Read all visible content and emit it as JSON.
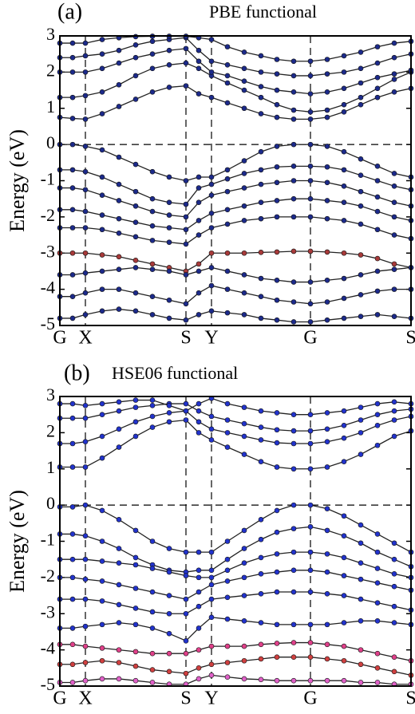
{
  "chart_data": [
    {
      "type": "line",
      "panel_label": "(a)",
      "title": "PBE functional",
      "ylabel": "Energy (eV)",
      "x": [
        0,
        0.16,
        0.32,
        0.53,
        0.74,
        0.95,
        1.16,
        1.37,
        1.58,
        1.74,
        1.9,
        2.1,
        2.31,
        2.52,
        2.72,
        2.93,
        3.14,
        3.35,
        3.56,
        3.77,
        3.98,
        4.19,
        4.4
      ],
      "xlim": [
        0,
        4.4
      ],
      "ylim": [
        -5,
        3
      ],
      "xticks": [
        {
          "value": 0,
          "label": "G"
        },
        {
          "value": 0.32,
          "label": "X"
        },
        {
          "value": 1.58,
          "label": "S"
        },
        {
          "value": 1.9,
          "label": "Y"
        },
        {
          "value": 3.14,
          "label": "G"
        },
        {
          "value": 4.4,
          "label": "S"
        }
      ],
      "yticks": [
        -5,
        -4,
        -3,
        -2,
        -1,
        0,
        1,
        2,
        3
      ],
      "hline": 0,
      "series": [
        {
          "color": "#1c2a8a",
          "values": [
            0.75,
            0.72,
            0.7,
            0.85,
            1.05,
            1.25,
            1.45,
            1.58,
            1.62,
            1.4,
            1.3,
            1.15,
            1.0,
            0.85,
            0.75,
            0.7,
            0.7,
            0.75,
            0.9,
            1.1,
            1.3,
            1.45,
            1.55
          ]
        },
        {
          "color": "#1c2a8a",
          "values": [
            1.3,
            1.3,
            1.35,
            1.45,
            1.65,
            1.9,
            2.1,
            2.2,
            2.25,
            2.1,
            1.9,
            1.7,
            1.5,
            1.3,
            1.1,
            0.95,
            0.9,
            0.95,
            1.1,
            1.3,
            1.55,
            1.8,
            2.0
          ]
        },
        {
          "color": "#1c2a8a",
          "values": [
            2.0,
            2.0,
            2.0,
            2.1,
            2.25,
            2.4,
            2.5,
            2.6,
            2.65,
            2.3,
            2.0,
            1.9,
            1.75,
            1.6,
            1.5,
            1.45,
            1.4,
            1.45,
            1.55,
            1.7,
            1.85,
            1.95,
            2.05
          ]
        },
        {
          "color": "#1c2a8a",
          "values": [
            2.4,
            2.4,
            2.45,
            2.5,
            2.6,
            2.75,
            2.85,
            2.9,
            2.95,
            2.6,
            2.3,
            2.2,
            2.1,
            2.0,
            1.95,
            1.9,
            1.9,
            1.95,
            2.0,
            2.1,
            2.25,
            2.4,
            2.5
          ]
        },
        {
          "color": "#1c2a8a",
          "values": [
            2.8,
            2.8,
            2.8,
            2.9,
            2.95,
            2.98,
            2.99,
            2.99,
            2.99,
            2.95,
            2.9,
            2.7,
            2.55,
            2.45,
            2.35,
            2.3,
            2.3,
            2.35,
            2.45,
            2.55,
            2.7,
            2.8,
            2.85
          ]
        },
        {
          "color": "#1c2a8a",
          "values": [
            0,
            0,
            -0.05,
            -0.15,
            -0.35,
            -0.55,
            -0.75,
            -0.9,
            -1.0,
            -0.9,
            -0.9,
            -0.7,
            -0.45,
            -0.2,
            -0.05,
            0,
            0,
            -0.05,
            -0.2,
            -0.4,
            -0.6,
            -0.8,
            -0.9
          ]
        },
        {
          "color": "#1c2a8a",
          "values": [
            -0.7,
            -0.7,
            -0.75,
            -0.9,
            -1.1,
            -1.3,
            -1.5,
            -1.6,
            -1.65,
            -1.2,
            -1.1,
            -0.95,
            -0.8,
            -0.7,
            -0.62,
            -0.6,
            -0.6,
            -0.62,
            -0.7,
            -0.85,
            -1.0,
            -1.15,
            -1.25
          ]
        },
        {
          "color": "#1c2a8a",
          "values": [
            -1.2,
            -1.2,
            -1.25,
            -1.4,
            -1.55,
            -1.7,
            -1.85,
            -1.95,
            -2.0,
            -1.6,
            -1.4,
            -1.3,
            -1.2,
            -1.1,
            -1.05,
            -1.0,
            -1.0,
            -1.05,
            -1.15,
            -1.3,
            -1.45,
            -1.6,
            -1.7
          ]
        },
        {
          "color": "#1c2a8a",
          "values": [
            -1.8,
            -1.8,
            -1.85,
            -1.95,
            -2.05,
            -2.15,
            -2.25,
            -2.3,
            -2.35,
            -2.1,
            -1.9,
            -1.8,
            -1.7,
            -1.6,
            -1.55,
            -1.5,
            -1.5,
            -1.55,
            -1.6,
            -1.7,
            -1.85,
            -2.0,
            -2.1
          ]
        },
        {
          "color": "#1c2a8a",
          "values": [
            -2.3,
            -2.3,
            -2.3,
            -2.35,
            -2.45,
            -2.55,
            -2.65,
            -2.7,
            -2.75,
            -2.5,
            -2.3,
            -2.2,
            -2.1,
            -2.05,
            -2.0,
            -2.0,
            -2.0,
            -2.05,
            -2.1,
            -2.2,
            -2.35,
            -2.5,
            -2.6
          ]
        },
        {
          "color": "#a83a3a",
          "values": [
            -3.0,
            -3.0,
            -3.0,
            -3.05,
            -3.1,
            -3.2,
            -3.3,
            -3.4,
            -3.5,
            -3.3,
            -3.0,
            -3.0,
            -3.0,
            -2.98,
            -2.97,
            -2.95,
            -2.95,
            -2.97,
            -3.0,
            -3.05,
            -3.15,
            -3.3,
            -3.4
          ]
        },
        {
          "color": "#1c2a8a",
          "values": [
            -3.6,
            -3.6,
            -3.55,
            -3.5,
            -3.45,
            -3.4,
            -3.45,
            -3.5,
            -3.6,
            -3.5,
            -3.4,
            -3.5,
            -3.6,
            -3.7,
            -3.75,
            -3.8,
            -3.8,
            -3.75,
            -3.7,
            -3.6,
            -3.5,
            -3.45,
            -3.4
          ]
        },
        {
          "color": "#1c2a8a",
          "values": [
            -4.2,
            -4.2,
            -4.1,
            -4.0,
            -4.0,
            -4.1,
            -4.2,
            -4.3,
            -4.4,
            -4.1,
            -3.9,
            -4.0,
            -4.1,
            -4.2,
            -4.3,
            -4.35,
            -4.4,
            -4.35,
            -4.25,
            -4.15,
            -4.05,
            -4.0,
            -4.0
          ]
        },
        {
          "color": "#1c2a8a",
          "values": [
            -4.8,
            -4.8,
            -4.7,
            -4.6,
            -4.55,
            -4.6,
            -4.7,
            -4.8,
            -4.85,
            -4.7,
            -4.6,
            -4.65,
            -4.7,
            -4.8,
            -4.85,
            -4.9,
            -4.9,
            -4.85,
            -4.8,
            -4.75,
            -4.7,
            -4.75,
            -4.8
          ]
        }
      ]
    },
    {
      "type": "line",
      "panel_label": "(b)",
      "title": "HSE06 functional",
      "ylabel": "Energy (eV)",
      "x": [
        0,
        0.16,
        0.32,
        0.53,
        0.74,
        0.95,
        1.16,
        1.37,
        1.58,
        1.74,
        1.9,
        2.1,
        2.31,
        2.52,
        2.72,
        2.93,
        3.14,
        3.35,
        3.56,
        3.77,
        3.98,
        4.19,
        4.4
      ],
      "xlim": [
        0,
        4.4
      ],
      "ylim": [
        -5,
        3
      ],
      "xticks": [
        {
          "value": 0,
          "label": "G"
        },
        {
          "value": 0.32,
          "label": "X"
        },
        {
          "value": 1.58,
          "label": "S"
        },
        {
          "value": 1.9,
          "label": "Y"
        },
        {
          "value": 3.14,
          "label": "G"
        },
        {
          "value": 4.4,
          "label": "S"
        }
      ],
      "yticks": [
        -5,
        -4,
        -3,
        -2,
        -1,
        0,
        1,
        2,
        3
      ],
      "hline": 0,
      "series": [
        {
          "color": "#2233cc",
          "values": [
            1.05,
            1.05,
            1.05,
            1.3,
            1.6,
            1.9,
            2.15,
            2.3,
            2.35,
            2.0,
            1.8,
            1.6,
            1.4,
            1.2,
            1.05,
            1.0,
            1.0,
            1.05,
            1.2,
            1.4,
            1.65,
            1.9,
            2.05
          ]
        },
        {
          "color": "#2233cc",
          "values": [
            1.7,
            1.7,
            1.75,
            1.9,
            2.1,
            2.3,
            2.45,
            2.55,
            2.6,
            2.3,
            2.1,
            2.0,
            1.9,
            1.8,
            1.72,
            1.7,
            1.7,
            1.75,
            1.85,
            2.0,
            2.2,
            2.35,
            2.45
          ]
        },
        {
          "color": "#2233cc",
          "values": [
            2.4,
            2.4,
            2.4,
            2.5,
            2.6,
            2.7,
            2.75,
            2.8,
            2.8,
            2.6,
            2.45,
            2.35,
            2.25,
            2.15,
            2.08,
            2.05,
            2.05,
            2.1,
            2.2,
            2.35,
            2.5,
            2.6,
            2.65
          ]
        },
        {
          "color": "#2233cc",
          "values": [
            2.8,
            2.8,
            2.75,
            2.8,
            2.85,
            2.9,
            2.9,
            2.75,
            2.6,
            2.8,
            2.95,
            2.8,
            2.7,
            2.6,
            2.55,
            2.5,
            2.5,
            2.55,
            2.6,
            2.7,
            2.8,
            2.85,
            2.8
          ]
        },
        {
          "color": "#2233cc",
          "values": [
            -0.05,
            -0.05,
            0,
            -0.15,
            -0.4,
            -0.7,
            -1.0,
            -1.2,
            -1.3,
            -1.3,
            -1.3,
            -1.0,
            -0.7,
            -0.4,
            -0.15,
            0,
            0,
            -0.1,
            -0.3,
            -0.55,
            -0.8,
            -1.05,
            -1.3
          ]
        },
        {
          "color": "#2233cc",
          "values": [
            -0.8,
            -0.8,
            -0.85,
            -1.0,
            -1.2,
            -1.45,
            -1.65,
            -1.8,
            -1.85,
            -1.8,
            -1.8,
            -1.5,
            -1.2,
            -0.95,
            -0.75,
            -0.65,
            -0.6,
            -0.7,
            -0.85,
            -1.05,
            -1.3,
            -1.5,
            -1.7
          ]
        },
        {
          "color": "#2233cc",
          "values": [
            -1.5,
            -1.5,
            -1.5,
            -1.55,
            -1.6,
            -1.65,
            -1.75,
            -1.85,
            -1.95,
            -2.0,
            -2.0,
            -1.8,
            -1.6,
            -1.45,
            -1.35,
            -1.3,
            -1.3,
            -1.35,
            -1.45,
            -1.6,
            -1.75,
            -1.9,
            -2.0
          ]
        },
        {
          "color": "#2233cc",
          "values": [
            -2.0,
            -2.0,
            -2.05,
            -2.1,
            -2.2,
            -2.3,
            -2.4,
            -2.5,
            -2.6,
            -2.4,
            -2.2,
            -2.1,
            -2.0,
            -1.9,
            -1.85,
            -1.8,
            -1.8,
            -1.85,
            -1.95,
            -2.05,
            -2.15,
            -2.25,
            -2.35
          ]
        },
        {
          "color": "#2233cc",
          "values": [
            -2.6,
            -2.6,
            -2.6,
            -2.65,
            -2.75,
            -2.85,
            -2.95,
            -3.0,
            -3.0,
            -2.8,
            -2.6,
            -2.55,
            -2.5,
            -2.45,
            -2.4,
            -2.4,
            -2.4,
            -2.45,
            -2.5,
            -2.6,
            -2.7,
            -2.8,
            -2.9
          ]
        },
        {
          "color": "#2233cc",
          "values": [
            -3.4,
            -3.4,
            -3.35,
            -3.3,
            -3.25,
            -3.3,
            -3.4,
            -3.55,
            -3.75,
            -3.4,
            -3.1,
            -3.15,
            -3.2,
            -3.25,
            -3.3,
            -3.3,
            -3.3,
            -3.3,
            -3.25,
            -3.2,
            -3.2,
            -3.25,
            -3.3
          ]
        },
        {
          "color": "#e0408a",
          "values": [
            -3.85,
            -3.85,
            -3.9,
            -3.95,
            -4.0,
            -4.05,
            -4.1,
            -4.1,
            -4.1,
            -4.0,
            -3.9,
            -3.9,
            -3.9,
            -3.85,
            -3.82,
            -3.8,
            -3.8,
            -3.85,
            -3.9,
            -4.0,
            -4.1,
            -4.2,
            -4.3
          ]
        },
        {
          "color": "#d04040",
          "values": [
            -4.4,
            -4.4,
            -4.35,
            -4.3,
            -4.35,
            -4.45,
            -4.55,
            -4.6,
            -4.65,
            -4.5,
            -4.4,
            -4.35,
            -4.3,
            -4.25,
            -4.2,
            -4.2,
            -4.2,
            -4.25,
            -4.3,
            -4.4,
            -4.5,
            -4.6,
            -4.7
          ]
        },
        {
          "color": "#e060c8",
          "values": [
            -4.9,
            -4.9,
            -4.85,
            -4.8,
            -4.8,
            -4.85,
            -4.9,
            -4.95,
            -4.95,
            -4.8,
            -4.7,
            -4.75,
            -4.8,
            -4.82,
            -4.85,
            -4.85,
            -4.85,
            -4.85,
            -4.85,
            -4.9,
            -4.9,
            -4.95,
            -4.95
          ]
        }
      ]
    }
  ]
}
